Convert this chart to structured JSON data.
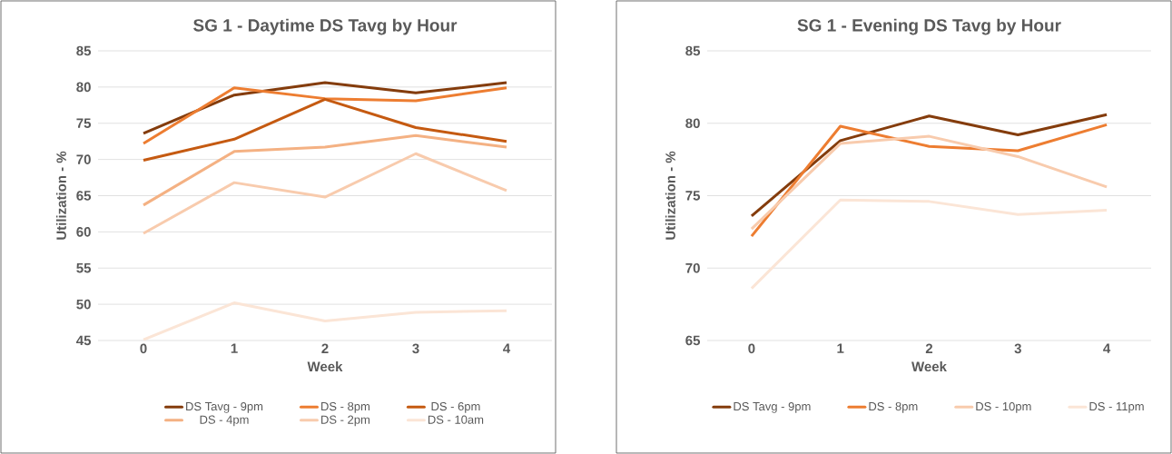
{
  "chart_data": [
    {
      "type": "line",
      "title": "SG 1 - Daytime  DS Tavg by Hour",
      "xlabel": "Week",
      "ylabel": "Utilization - %",
      "categories": [
        "0",
        "1",
        "2",
        "3",
        "4"
      ],
      "ylim": [
        45,
        85
      ],
      "yticks": [
        45,
        50,
        55,
        60,
        65,
        70,
        75,
        80,
        85
      ],
      "grid": "y",
      "legend": "bottom",
      "series": [
        {
          "name": "DS Tavg - 9pm",
          "color": "#843c0c",
          "values": [
            73.6,
            78.9,
            80.6,
            79.2,
            80.6
          ]
        },
        {
          "name": "DS - 8pm",
          "color": "#ed7d31",
          "values": [
            72.2,
            79.9,
            78.4,
            78.1,
            79.9
          ]
        },
        {
          "name": "DS - 6pm",
          "color": "#c55a11",
          "values": [
            69.9,
            72.8,
            78.3,
            74.4,
            72.5
          ]
        },
        {
          "name": "DS - 4pm",
          "color": "#f4b183",
          "values": [
            63.7,
            71.1,
            71.7,
            73.3,
            71.7
          ]
        },
        {
          "name": "DS - 2pm",
          "color": "#f8cbad",
          "values": [
            59.8,
            66.8,
            64.8,
            70.8,
            65.7
          ]
        },
        {
          "name": "DS - 10am",
          "color": "#fbe5d6",
          "values": [
            45.1,
            50.2,
            47.7,
            48.9,
            49.1
          ]
        }
      ]
    },
    {
      "type": "line",
      "title": "SG 1 - Evening DS Tavg by Hour",
      "xlabel": "Week",
      "ylabel": "Utilization - %",
      "categories": [
        "0",
        "1",
        "2",
        "3",
        "4"
      ],
      "ylim": [
        65,
        85
      ],
      "yticks": [
        65,
        70,
        75,
        80,
        85
      ],
      "grid": "y",
      "legend": "bottom",
      "series": [
        {
          "name": "DS Tavg - 9pm",
          "color": "#843c0c",
          "values": [
            73.6,
            78.8,
            80.5,
            79.2,
            80.6
          ]
        },
        {
          "name": "DS - 8pm",
          "color": "#ed7d31",
          "values": [
            72.2,
            79.8,
            78.4,
            78.1,
            79.9
          ]
        },
        {
          "name": "DS - 10pm",
          "color": "#f8cbad",
          "values": [
            72.7,
            78.6,
            79.1,
            77.7,
            75.6
          ]
        },
        {
          "name": "DS - 11pm",
          "color": "#fbe5d6",
          "values": [
            68.6,
            74.7,
            74.6,
            73.7,
            74.0
          ]
        }
      ]
    }
  ]
}
